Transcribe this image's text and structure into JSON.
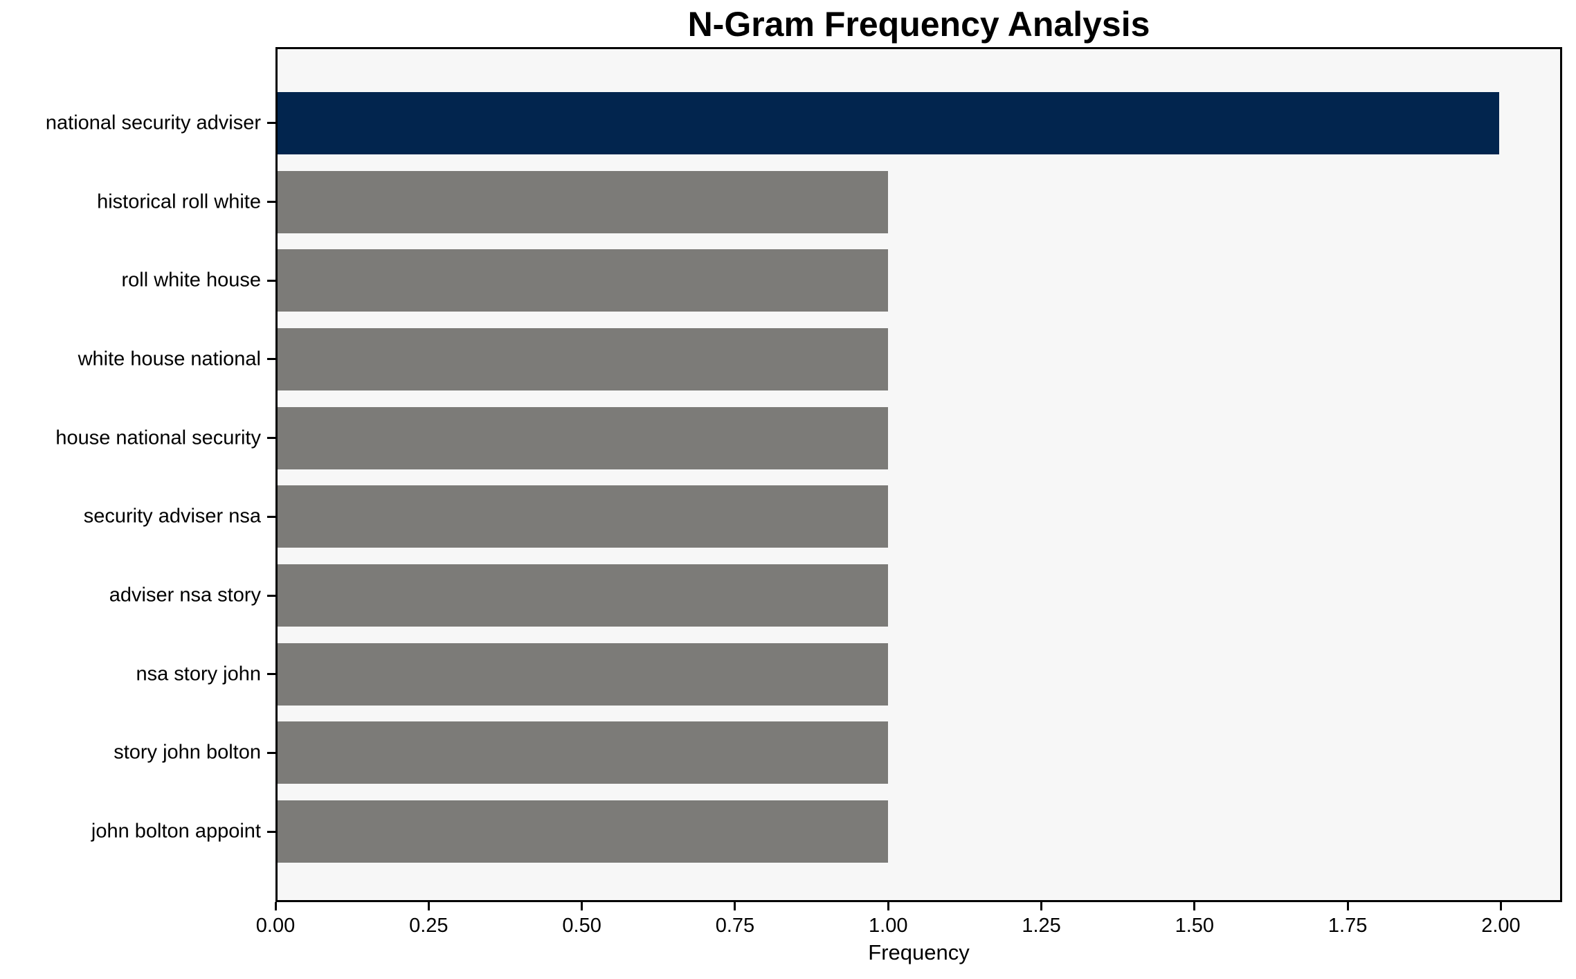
{
  "chart_data": {
    "type": "bar",
    "orientation": "horizontal",
    "title": "N-Gram Frequency Analysis",
    "xlabel": "Frequency",
    "ylabel": "",
    "categories": [
      "national security adviser",
      "historical roll white",
      "roll white house",
      "white house national",
      "house national security",
      "security adviser nsa",
      "adviser nsa story",
      "nsa story john",
      "story john bolton",
      "john bolton appoint"
    ],
    "values": [
      2,
      1,
      1,
      1,
      1,
      1,
      1,
      1,
      1,
      1
    ],
    "bar_colors": [
      "#02254E",
      "#7C7B78",
      "#7C7B78",
      "#7C7B78",
      "#7C7B78",
      "#7C7B78",
      "#7C7B78",
      "#7C7B78",
      "#7C7B78",
      "#7C7B78"
    ],
    "xlim": [
      0,
      2.1
    ],
    "xticks": [
      {
        "value": 0.0,
        "label": "0.00"
      },
      {
        "value": 0.25,
        "label": "0.25"
      },
      {
        "value": 0.5,
        "label": "0.50"
      },
      {
        "value": 0.75,
        "label": "0.75"
      },
      {
        "value": 1.0,
        "label": "1.00"
      },
      {
        "value": 1.25,
        "label": "1.25"
      },
      {
        "value": 1.5,
        "label": "1.50"
      },
      {
        "value": 1.75,
        "label": "1.75"
      },
      {
        "value": 2.0,
        "label": "2.00"
      }
    ],
    "grid": false,
    "legend": "none",
    "plot_background": "#F7F7F7",
    "figure_background": "#FFFFFF",
    "spine_color": "#000000",
    "text_color": "#000000"
  }
}
